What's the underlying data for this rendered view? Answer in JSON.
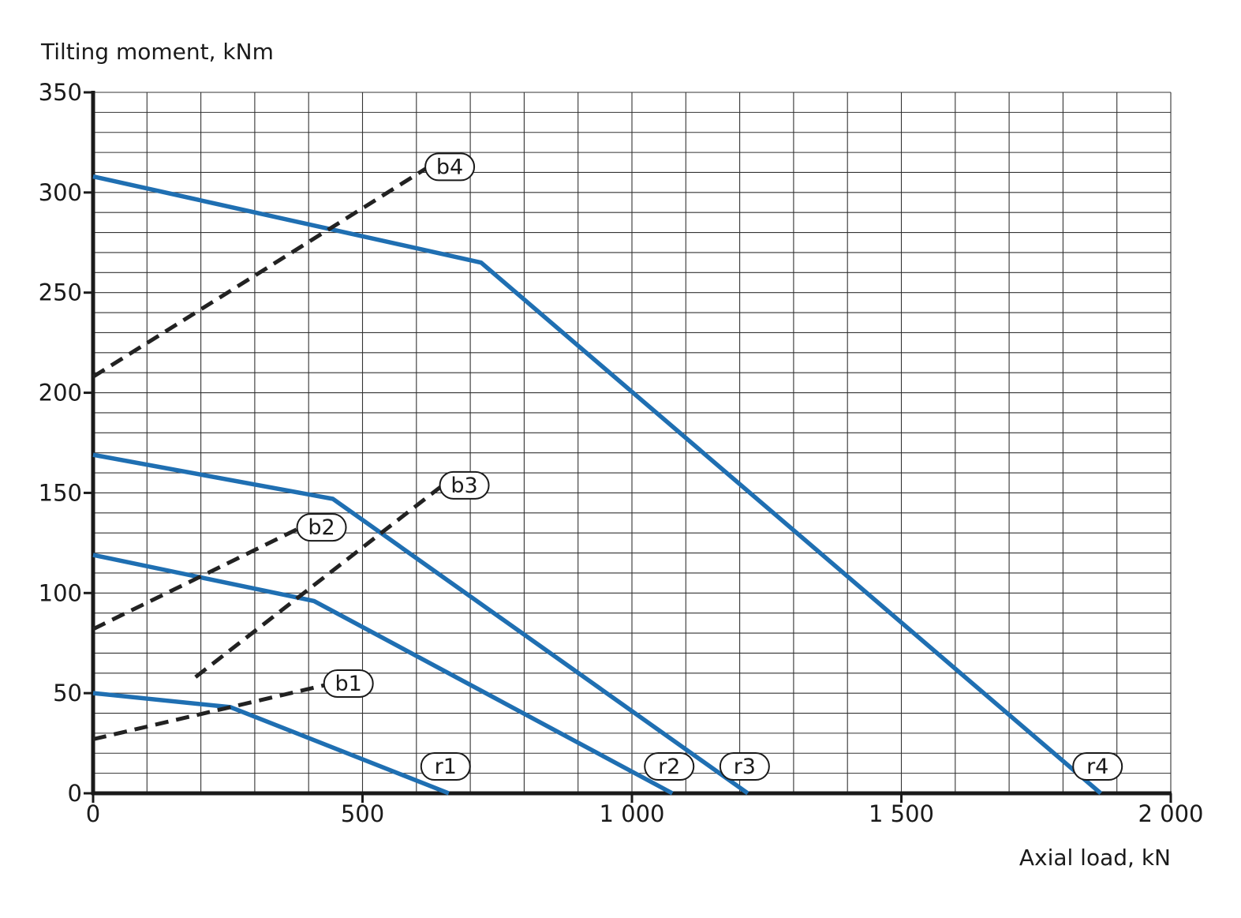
{
  "chart_data": {
    "type": "line",
    "ylabel": "Tilting moment, kNm",
    "xlabel": "Axial load, kN",
    "xlim": [
      0,
      2000
    ],
    "ylim": [
      0,
      350
    ],
    "x_ticks": [
      {
        "value": 0,
        "label": "0"
      },
      {
        "value": 500,
        "label": "500"
      },
      {
        "value": 1000,
        "label": "1 000"
      },
      {
        "value": 1500,
        "label": "1 500"
      },
      {
        "value": 2000,
        "label": "2 000"
      }
    ],
    "y_ticks": [
      {
        "value": 0,
        "label": "0"
      },
      {
        "value": 50,
        "label": "50"
      },
      {
        "value": 100,
        "label": "100"
      },
      {
        "value": 150,
        "label": "150"
      },
      {
        "value": 200,
        "label": "200"
      },
      {
        "value": 250,
        "label": "250"
      },
      {
        "value": 300,
        "label": "300"
      },
      {
        "value": 350,
        "label": "350"
      }
    ],
    "grid": {
      "x_step": 100,
      "y_step": 10
    },
    "colors": {
      "r_curves": "#1f6fb2",
      "b_curves": "#222222",
      "grid": "#333333"
    },
    "series": [
      {
        "name": "r1",
        "style": "solid",
        "points": [
          [
            0,
            50
          ],
          [
            255,
            43
          ],
          [
            660,
            0
          ]
        ]
      },
      {
        "name": "r2",
        "style": "solid",
        "points": [
          [
            0,
            119
          ],
          [
            410,
            96
          ],
          [
            1075,
            0
          ]
        ]
      },
      {
        "name": "r3",
        "style": "solid",
        "points": [
          [
            0,
            169
          ],
          [
            445,
            147
          ],
          [
            1215,
            0
          ]
        ]
      },
      {
        "name": "r4",
        "style": "solid",
        "points": [
          [
            0,
            308
          ],
          [
            720,
            265
          ],
          [
            1870,
            0
          ]
        ]
      },
      {
        "name": "b1",
        "style": "dashed",
        "points": [
          [
            0,
            27
          ],
          [
            430,
            54
          ]
        ]
      },
      {
        "name": "b2",
        "style": "dashed",
        "points": [
          [
            0,
            82
          ],
          [
            380,
            132
          ]
        ]
      },
      {
        "name": "b3",
        "style": "dashed",
        "points": [
          [
            190,
            58
          ],
          [
            645,
            153
          ]
        ]
      },
      {
        "name": "b4",
        "style": "dashed",
        "points": [
          [
            0,
            208
          ],
          [
            618,
            312
          ]
        ]
      }
    ]
  }
}
